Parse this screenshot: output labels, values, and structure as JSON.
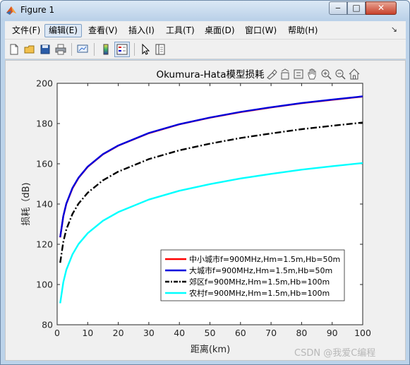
{
  "window": {
    "title": "Figure 1",
    "minimize_glyph": "‒",
    "maximize_glyph": "□",
    "close_glyph": "✕"
  },
  "menubar": {
    "items": [
      "文件(F)",
      "编辑(E)",
      "查看(V)",
      "插入(I)",
      "工具(T)",
      "桌面(D)",
      "窗口(W)",
      "帮助(H)"
    ],
    "active_index": 1,
    "dock_glyph": "↘"
  },
  "toolbar": {
    "icons": [
      "new-figure-icon",
      "open-file-icon",
      "save-icon",
      "print-icon",
      "link-plot-icon",
      "colorbar-icon",
      "legend-icon",
      "pointer-icon",
      "property-inspector-icon"
    ],
    "pressed": "legend-icon"
  },
  "axes_toolbar": {
    "icons": [
      "brush-icon",
      "export-icon",
      "data-tip-icon",
      "pan-icon",
      "zoom-in-icon",
      "zoom-out-icon",
      "home-icon"
    ]
  },
  "watermark": "CSDN @我爱C编程",
  "colors": {
    "axes_bg": "#ffffff",
    "figure_bg": "#f0f0f0",
    "series_red": "#ff0000",
    "series_blue": "#0000dd",
    "series_black": "#000000",
    "series_cyan": "#00ffff"
  },
  "chart_data": {
    "type": "line",
    "title": "Okumura-Hata模型损耗",
    "xlabel": "距离(km)",
    "ylabel": "损耗（dB)",
    "xlim": [
      0,
      100
    ],
    "ylim": [
      80,
      200
    ],
    "xticks": [
      0,
      10,
      20,
      30,
      40,
      50,
      60,
      70,
      80,
      90,
      100
    ],
    "yticks": [
      80,
      100,
      120,
      140,
      160,
      180,
      200
    ],
    "grid": false,
    "legend_position": "bottom-right",
    "x": [
      1,
      2,
      3,
      5,
      7,
      10,
      15,
      20,
      30,
      40,
      50,
      60,
      70,
      80,
      90,
      100
    ],
    "series": [
      {
        "name": "中小城市f=900MHz,Hm=1.5m,Hb=50m",
        "color": "#ff0000",
        "style": "solid",
        "values": [
          123.4,
          133.9,
          140.1,
          147.8,
          153.0,
          158.5,
          164.7,
          169.0,
          175.2,
          179.6,
          182.9,
          185.7,
          188.0,
          190.1,
          191.8,
          193.4
        ]
      },
      {
        "name": "大城市f=900MHz,Hm=1.5m,Hb=50m",
        "color": "#0000dd",
        "style": "solid",
        "values": [
          123.5,
          134.0,
          140.2,
          148.0,
          153.1,
          158.6,
          164.8,
          169.1,
          175.3,
          179.7,
          183.0,
          185.8,
          188.1,
          190.2,
          191.9,
          193.5
        ]
      },
      {
        "name": "郊区f=900MHz,Hm=1.5m,Hb=100m",
        "color": "#000000",
        "style": "dash-dot",
        "values": [
          110.8,
          121.2,
          127.4,
          135.1,
          140.2,
          145.6,
          151.8,
          156.1,
          162.3,
          166.7,
          170.0,
          172.8,
          175.1,
          177.2,
          178.9,
          180.5
        ]
      },
      {
        "name": "农村f=900MHz,Hm=1.5m,Hb=100m",
        "color": "#00ffff",
        "style": "solid",
        "values": [
          90.7,
          101.1,
          107.3,
          115.0,
          120.1,
          125.5,
          131.7,
          136.0,
          142.2,
          146.6,
          149.9,
          152.7,
          155.0,
          157.1,
          158.8,
          160.4
        ]
      }
    ]
  }
}
